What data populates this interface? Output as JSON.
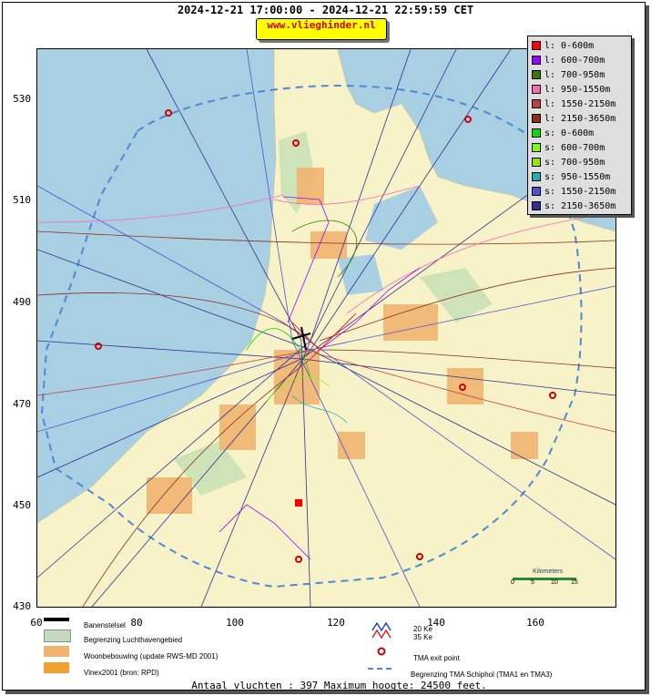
{
  "title": "2024-12-21 17:00:00 - 2024-12-21 22:59:59 CET",
  "url_badge": "www.vlieghinder.nl",
  "axes": {
    "x_ticks": [
      "60",
      "80",
      "100",
      "120",
      "140",
      "160"
    ],
    "y_ticks": [
      "530",
      "510",
      "490",
      "470",
      "450",
      "430"
    ]
  },
  "legend": [
    {
      "label": "l: 0-600m",
      "color": "#ff0000"
    },
    {
      "label": "l: 600-700m",
      "color": "#a000ff"
    },
    {
      "label": "l: 700-950m",
      "color": "#3c7800"
    },
    {
      "label": "l: 950-1550m",
      "color": "#ff69b4"
    },
    {
      "label": "l: 1550-2150m",
      "color": "#c04040"
    },
    {
      "label": "l: 2150-3650m",
      "color": "#8b2f1a"
    },
    {
      "label": "s: 0-600m",
      "color": "#00dd00"
    },
    {
      "label": "s: 600-700m",
      "color": "#80ff00"
    },
    {
      "label": "s: 700-950m",
      "color": "#a0e000"
    },
    {
      "label": "s: 950-1550m",
      "color": "#20b0b0"
    },
    {
      "label": "s: 1550-2150m",
      "color": "#5050d0"
    },
    {
      "label": "s: 2150-3650m",
      "color": "#303090"
    }
  ],
  "scale_bar": {
    "title": "Kilometers",
    "ticks": [
      "0",
      "5",
      "10",
      "15"
    ]
  },
  "map_legend": {
    "runway": "Banenstelsel",
    "airport_boundary": "Begrenzing Luchthavengebied",
    "housing": "Woonbebouwing (update RWS-MD 2001)",
    "vinex": "Vinex2001 (bron: RPD)",
    "ke20": "20 Ke",
    "ke35": "35 Ke",
    "tma_exit": "TMA exit point",
    "tma_boundary": "Begrenzing TMA Schiphol  (TMA1 en TMA3)"
  },
  "stats": "Antaal vluchten : 397 Maximum hoogte: 24500 feet."
}
